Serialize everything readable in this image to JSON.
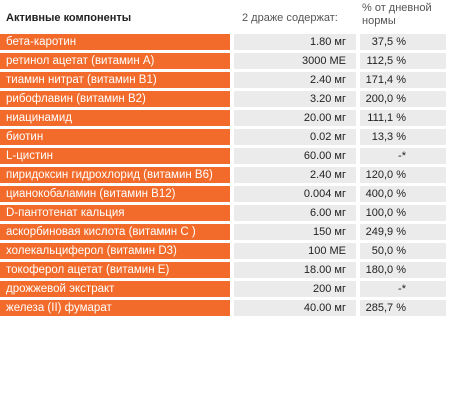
{
  "header": {
    "components": "Активные компоненты",
    "dose": "2 драже содержат:",
    "percent": "% от дневной нормы"
  },
  "rows": [
    {
      "name": "бета-каротин",
      "dose": "1.80 мг",
      "pct": "37,5 %"
    },
    {
      "name": "ретинол ацетат (витамин А)",
      "dose": "3000 МЕ",
      "pct": "112,5 %"
    },
    {
      "name": "тиамин нитрат (витамин В1)",
      "dose": "2.40 мг",
      "pct": "171,4 %"
    },
    {
      "name": "рибофлавин (витамин В2)",
      "dose": "3.20 мг",
      "pct": "200,0 %"
    },
    {
      "name": "ниацинамид",
      "dose": "20.00 мг",
      "pct": "111,1 %"
    },
    {
      "name": "биотин",
      "dose": "0.02 мг",
      "pct": "13,3 %"
    },
    {
      "name": "L-цистин",
      "dose": "60.00 мг",
      "pct": "-*"
    },
    {
      "name": "пиридоксин гидрохлорид (витамин В6)",
      "dose": "2.40 мг",
      "pct": "120,0 %"
    },
    {
      "name": "цианокобаламин (витамин В12)",
      "dose": "0.004 мг",
      "pct": "400,0 %"
    },
    {
      "name": "D-пантотенат кальция",
      "dose": "6.00 мг",
      "pct": "100,0 %"
    },
    {
      "name": "аскорбиновая кислота (витамин С )",
      "dose": "150 мг",
      "pct": "249,9 %"
    },
    {
      "name": "холекальциферол (витамин D3)",
      "dose": "100 МЕ",
      "pct": "50,0 %"
    },
    {
      "name": "токоферол ацетат (витамин Е)",
      "dose": "18.00 мг",
      "pct": "180,0 %"
    },
    {
      "name": "дрожжевой экстракт",
      "dose": "200 мг",
      "pct": "-*"
    },
    {
      "name": "железа (II) фумарат",
      "dose": "40.00 мг",
      "pct": "285,7 %"
    }
  ]
}
